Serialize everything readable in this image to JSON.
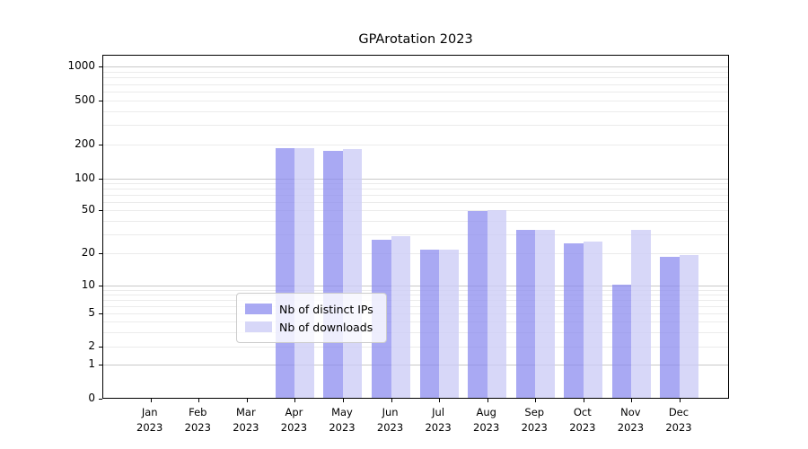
{
  "chart_data": {
    "type": "bar",
    "title": "GPArotation 2023",
    "categories": [
      "Jan",
      "Feb",
      "Mar",
      "Apr",
      "May",
      "Jun",
      "Jul",
      "Aug",
      "Sep",
      "Oct",
      "Nov",
      "Dec"
    ],
    "year": "2023",
    "series": [
      {
        "name": "Nb of distinct IPs",
        "color": "rgba(136,136,238,0.72)",
        "values": [
          0,
          0,
          0,
          184,
          172,
          26,
          21,
          48,
          32,
          24,
          10,
          18
        ]
      },
      {
        "name": "Nb of downloads",
        "color": "rgba(204,204,246,0.78)",
        "values": [
          0,
          0,
          0,
          184,
          178,
          28,
          21,
          49,
          32,
          25,
          32,
          19
        ]
      }
    ],
    "y_axis": {
      "scale": "symlog",
      "ticks": [
        0,
        1,
        2,
        5,
        10,
        20,
        50,
        100,
        200,
        500,
        1000
      ],
      "major_gridlines": [
        1,
        10,
        100,
        1000
      ],
      "minor_gridlines": [
        2,
        3,
        4,
        5,
        6,
        7,
        8,
        9,
        20,
        30,
        40,
        50,
        60,
        70,
        80,
        90,
        200,
        300,
        400,
        500,
        600,
        700,
        800,
        900
      ],
      "ylim": [
        0,
        1200
      ]
    },
    "xlabel": "",
    "ylabel": "",
    "grid": true,
    "legend": {
      "position": "lower center"
    }
  },
  "colors": {
    "background": "#ffffff",
    "spine": "#000000",
    "grid_minor": "#ebebeb",
    "grid_major": "#c9c9c9",
    "bar_ips_rendered": "#a3a3f0",
    "bar_downloads_rendered": "#dcdcf8"
  }
}
